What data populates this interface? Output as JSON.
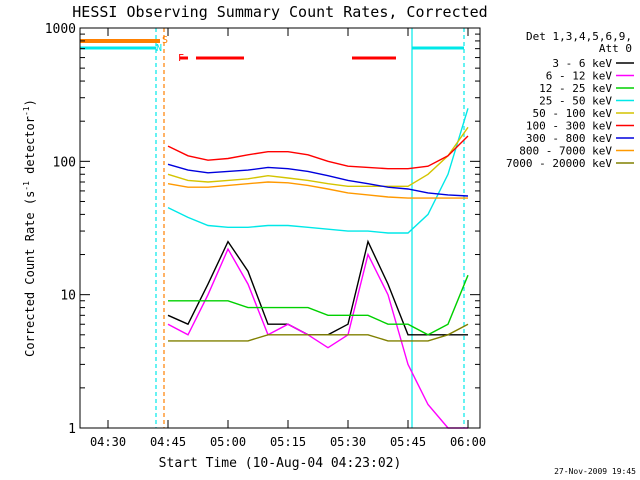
{
  "chart_data": {
    "type": "line",
    "title": "HESSI Observing Summary Count Rates, Corrected",
    "xlabel": "Start Time (10-Aug-04 04:23:02)",
    "ylabel_main": "Corrected Count Rate (s",
    "ylabel_sup1": "-1",
    "ylabel_mid": " detector",
    "ylabel_sup2": "-1",
    "ylabel_end": ")",
    "y_scale": "log",
    "ylim": [
      1,
      1000
    ],
    "xlim_minutes": [
      4.33,
      6.02
    ],
    "xlim": [
      "04:23",
      "06:03"
    ],
    "x_ticks": [
      "04:30",
      "04:45",
      "05:00",
      "05:15",
      "05:30",
      "05:45",
      "06:00"
    ],
    "y_ticks": [
      "1",
      "10",
      "100",
      "1000"
    ],
    "legend_header": "Det 1,3,4,5,6,9,",
    "legend_header2": "Att 0",
    "footer_date": "27-Nov-2009 19:45",
    "flag_labels": {
      "s": "S",
      "n": "N",
      "f": "F"
    },
    "flag_colors": {
      "s": "#ff8000",
      "n": "#00e8e8",
      "f": "#ff0000"
    },
    "flags": {
      "s": [
        [
          "04:23",
          "04:43"
        ]
      ],
      "n": [
        [
          "04:23",
          "04:42"
        ],
        [
          "05:46",
          "05:59"
        ]
      ],
      "f": [
        [
          "04:48",
          "04:50"
        ],
        [
          "04:52",
          "05:04"
        ],
        [
          "05:31",
          "05:42"
        ]
      ]
    },
    "markers": [
      {
        "time": "04:42",
        "color": "#00e8e8",
        "style": "dash"
      },
      {
        "time": "04:44",
        "color": "#ff8000",
        "style": "dash"
      },
      {
        "time": "05:46",
        "color": "#00e8e8",
        "style": "solid"
      },
      {
        "time": "05:59",
        "color": "#00e8e8",
        "style": "dash"
      }
    ],
    "x": [
      "04:45",
      "04:50",
      "04:55",
      "05:00",
      "05:05",
      "05:10",
      "05:15",
      "05:20",
      "05:25",
      "05:30",
      "05:35",
      "05:40",
      "05:45",
      "05:50",
      "05:55",
      "06:00"
    ],
    "series": [
      {
        "name": "3 - 6 keV",
        "color": "#000000",
        "values": [
          7,
          6,
          12,
          25,
          15,
          6,
          6,
          5,
          5,
          6,
          25,
          12,
          5,
          5,
          5,
          5
        ]
      },
      {
        "name": "6 - 12 keV",
        "color": "#ff00ff",
        "values": [
          6,
          5,
          10,
          22,
          12,
          5,
          6,
          5,
          4,
          5,
          20,
          10,
          3,
          1.5,
          1,
          1
        ]
      },
      {
        "name": "12 - 25 keV",
        "color": "#00d000",
        "values": [
          9,
          9,
          9,
          9,
          8,
          8,
          8,
          8,
          7,
          7,
          7,
          6,
          6,
          5,
          6,
          14
        ]
      },
      {
        "name": "25 - 50 keV",
        "color": "#00e8e8",
        "values": [
          45,
          38,
          33,
          32,
          32,
          33,
          33,
          32,
          31,
          30,
          30,
          29,
          29,
          40,
          80,
          250
        ]
      },
      {
        "name": "50 - 100 keV",
        "color": "#d4c400",
        "values": [
          80,
          72,
          70,
          72,
          74,
          78,
          75,
          72,
          68,
          65,
          65,
          65,
          65,
          80,
          110,
          180
        ]
      },
      {
        "name": "100 - 300 keV",
        "color": "#ff0000",
        "values": [
          130,
          110,
          102,
          105,
          112,
          118,
          118,
          112,
          100,
          92,
          90,
          88,
          88,
          92,
          110,
          155
        ]
      },
      {
        "name": "300 - 800 keV",
        "color": "#0000dd",
        "values": [
          95,
          86,
          82,
          84,
          86,
          90,
          88,
          84,
          78,
          72,
          68,
          64,
          62,
          58,
          56,
          55
        ]
      },
      {
        "name": "800 - 7000 keV",
        "color": "#ff9900",
        "values": [
          68,
          64,
          64,
          66,
          68,
          70,
          69,
          66,
          62,
          58,
          56,
          54,
          53,
          53,
          53,
          53
        ]
      },
      {
        "name": "7000 - 20000 keV",
        "color": "#808000",
        "values": [
          4.5,
          4.5,
          4.5,
          4.5,
          4.5,
          5,
          5,
          5,
          5,
          5,
          5,
          4.5,
          4.5,
          4.5,
          5,
          6
        ]
      }
    ]
  }
}
